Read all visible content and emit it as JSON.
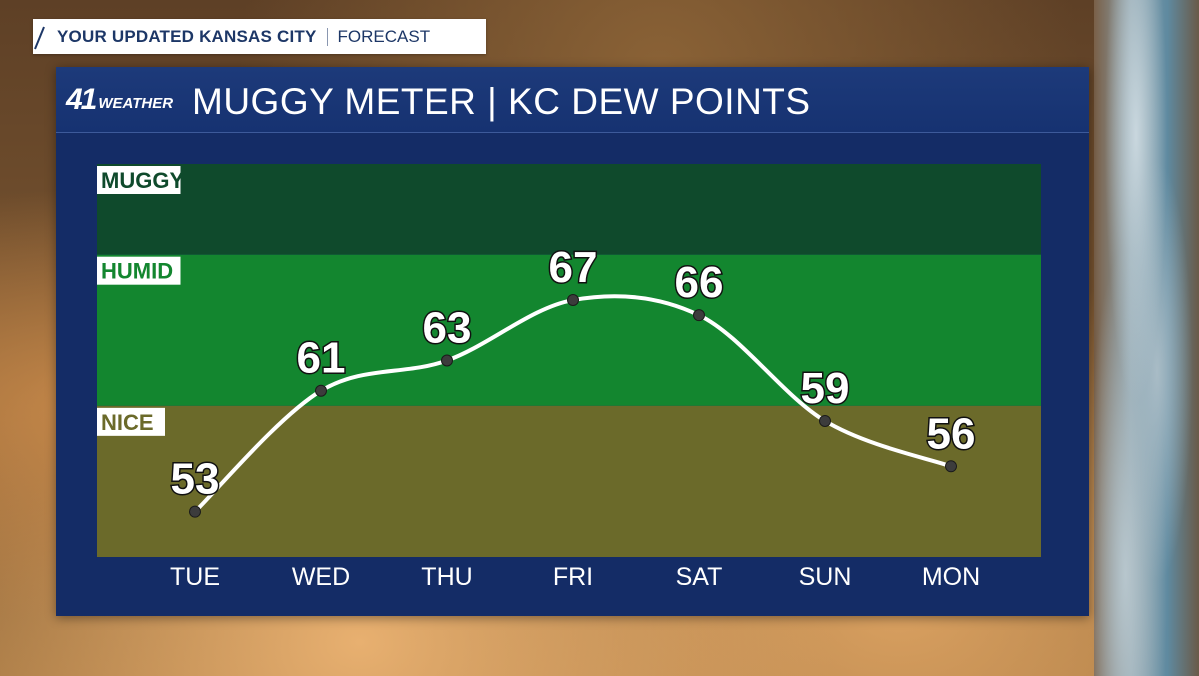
{
  "banner": {
    "title": "YOUR UPDATED KANSAS CITY",
    "subtitle": "FORECAST"
  },
  "panel": {
    "logo_number": "41",
    "logo_word": "WEATHER",
    "title": "MUGGY METER | KC DEW POINTS"
  },
  "colors": {
    "muggy_band": "#0f4a2c",
    "humid_band": "#13862f",
    "nice_band": "#6b6a2a",
    "panel": "#142c66",
    "line": "#ffffff"
  },
  "chart_data": {
    "type": "line",
    "title": "MUGGY METER | KC DEW POINTS",
    "categories": [
      "TUE",
      "WED",
      "THU",
      "FRI",
      "SAT",
      "SUN",
      "MON"
    ],
    "series": [
      {
        "values": [
          53,
          61,
          63,
          67,
          66,
          59,
          56
        ]
      }
    ],
    "data_labels": [
      "53",
      "61",
      "63",
      "67",
      "66",
      "59",
      "56"
    ],
    "bands": [
      {
        "label": "MUGGY",
        "from": 70,
        "to": 76
      },
      {
        "label": "HUMID",
        "from": 60,
        "to": 70
      },
      {
        "label": "NICE",
        "from": 50,
        "to": 60
      }
    ],
    "ylim": [
      50,
      76
    ],
    "grid": false,
    "legend": "none"
  }
}
